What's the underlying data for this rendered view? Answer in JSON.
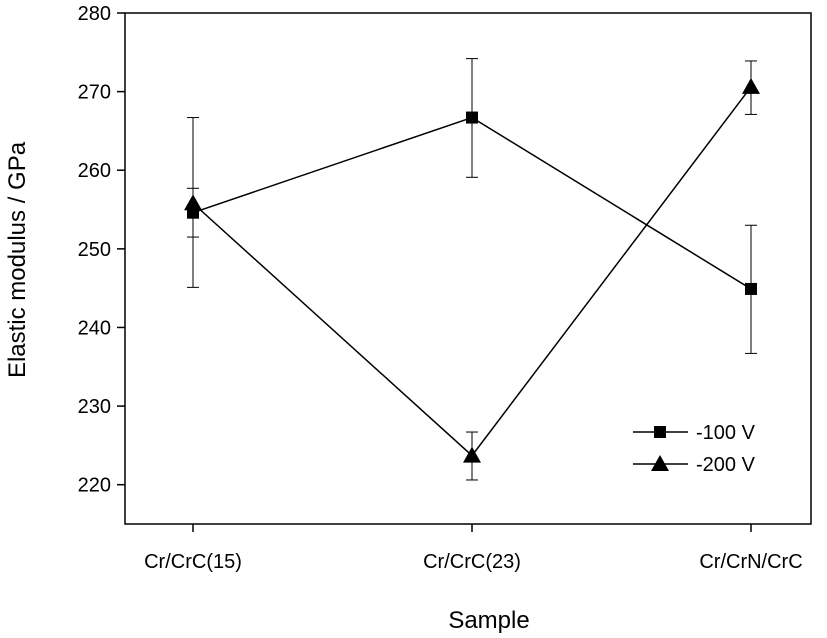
{
  "chart_data": {
    "type": "line",
    "xlabel": "Sample",
    "ylabel": "Elastic modulus / GPa",
    "categories": [
      "Cr/CrC(15)",
      "Cr/CrC(23)",
      "Cr/CrN/CrC"
    ],
    "ylim": [
      215,
      280
    ],
    "yticks": [
      220,
      230,
      240,
      250,
      260,
      270,
      280
    ],
    "grid": false,
    "legend_position": "bottom-right",
    "series": [
      {
        "name": "-100 V",
        "marker": "square",
        "color": "#000000",
        "values": [
          254.6,
          266.7,
          244.9
        ],
        "err_low": [
          245.1,
          259.1,
          236.7
        ],
        "err_high": [
          266.7,
          274.2,
          253.0
        ]
      },
      {
        "name": "-200 V",
        "marker": "triangle",
        "color": "#000000",
        "values": [
          255.8,
          223.7,
          270.6
        ],
        "err_low": [
          251.5,
          220.6,
          267.1
        ],
        "err_high": [
          257.7,
          226.7,
          273.9
        ]
      }
    ]
  }
}
